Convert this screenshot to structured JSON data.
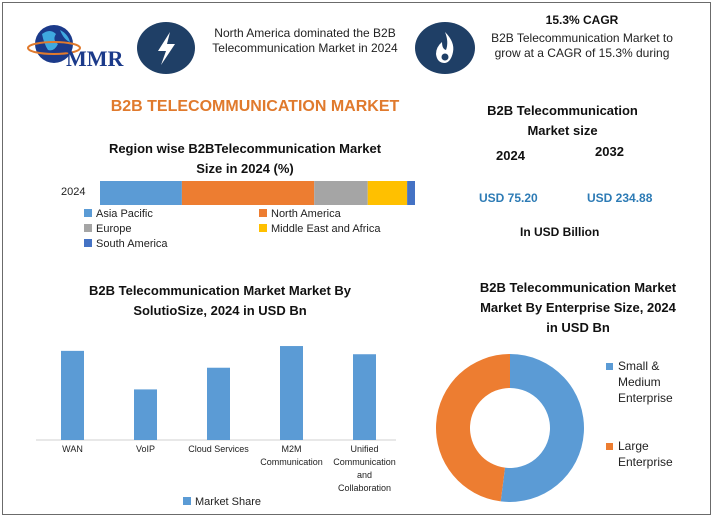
{
  "header": {
    "logo_text": "MMR",
    "insight1": "North America dominated the B2B Telecommunication Market in 2024",
    "insight2_title": "15.3% CAGR",
    "insight2_text": "B2B Telecommunication Market to grow at a CAGR of 15.3% during",
    "icon1": "lightning-bolt-icon",
    "icon2": "flame-icon"
  },
  "main_title": "B2B TELECOMMUNICATION MARKET",
  "market_size": {
    "title": "B2B Telecommunication Market size",
    "year1": "2024",
    "year2": "2032",
    "value1": "USD 75.20",
    "value2": "USD 234.88",
    "unit": "In USD Billion"
  },
  "chart_data": [
    {
      "type": "bar",
      "orientation": "horizontal-stacked",
      "title": "Region wise B2BTelecommunication Market Size in 2024 (%)",
      "categories": [
        "2024"
      ],
      "series": [
        {
          "name": "Asia Pacific",
          "values": [
            26
          ],
          "color": "#5b9bd5"
        },
        {
          "name": "North America",
          "values": [
            42
          ],
          "color": "#ed7d31"
        },
        {
          "name": "Europe",
          "values": [
            17
          ],
          "color": "#a5a5a5"
        },
        {
          "name": "Middle East and Africa",
          "values": [
            12.5
          ],
          "color": "#ffc000"
        },
        {
          "name": "South America",
          "values": [
            4.5
          ],
          "color": "#4472c4"
        }
      ],
      "xlim": [
        0,
        100
      ],
      "legend": "bottom"
    },
    {
      "type": "bar",
      "title": "B2B Telecommunication Market Market By SolutioSize, 2024 in USD Bn",
      "categories": [
        "WAN",
        "VoIP",
        "Cloud Services",
        "M2M Communication",
        "Unified Communication and Collaboration"
      ],
      "category_lines": [
        [
          "WAN"
        ],
        [
          "VoIP"
        ],
        [
          "Cloud Services"
        ],
        [
          "M2M",
          "Communication"
        ],
        [
          "Unified",
          "Communication",
          "and",
          "Collaboration"
        ]
      ],
      "series": [
        {
          "name": "Market Share",
          "values": [
            18.5,
            10.5,
            15,
            19.5,
            17.8
          ],
          "color": "#5b9bd5"
        }
      ],
      "ylim": [
        0,
        22
      ],
      "legend": "bottom"
    },
    {
      "type": "pie",
      "style": "donut",
      "title": "B2B Telecommunication Market Market By Enterprise Size, 2024 in USD Bn",
      "series": [
        {
          "name": "Small & Medium Enterprise",
          "label_lines": [
            "Small &",
            "Medium",
            "Enterprise"
          ],
          "value": 52,
          "color": "#5b9bd5"
        },
        {
          "name": "Large Enterprise",
          "label_lines": [
            "Large",
            "Enterprise"
          ],
          "value": 48,
          "color": "#ed7d31"
        }
      ],
      "legend": "right"
    }
  ]
}
